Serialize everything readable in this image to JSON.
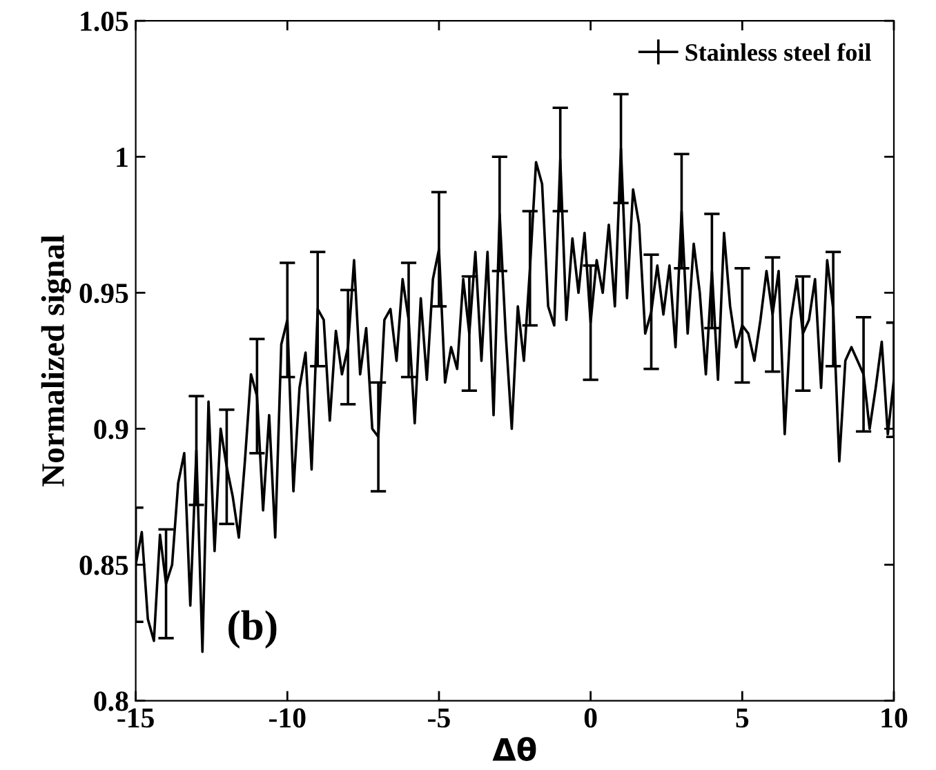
{
  "chart_data": {
    "type": "line",
    "xlabel": "Δθ",
    "ylabel": "Normalized signal",
    "annotations": [
      "(b)"
    ],
    "x": [
      -15.0,
      -14.8,
      -14.6,
      -14.4,
      -14.2,
      -14.0,
      -13.8,
      -13.6,
      -13.4,
      -13.2,
      -13.0,
      -12.8,
      -12.6,
      -12.4,
      -12.2,
      -12.0,
      -11.8,
      -11.6,
      -11.4,
      -11.2,
      -11.0,
      -10.8,
      -10.6,
      -10.4,
      -10.2,
      -10.0,
      -9.8,
      -9.6,
      -9.4,
      -9.2,
      -9.0,
      -8.8,
      -8.6,
      -8.4,
      -8.2,
      -8.0,
      -7.8,
      -7.6,
      -7.4,
      -7.2,
      -7.0,
      -6.8,
      -6.6,
      -6.4,
      -6.2,
      -6.0,
      -5.8,
      -5.6,
      -5.4,
      -5.2,
      -5.0,
      -4.8,
      -4.6,
      -4.4,
      -4.2,
      -4.0,
      -3.8,
      -3.6,
      -3.4,
      -3.2,
      -3.0,
      -2.8,
      -2.6,
      -2.4,
      -2.2,
      -2.0,
      -1.8,
      -1.6,
      -1.4,
      -1.2,
      -1.0,
      -0.8,
      -0.6,
      -0.4,
      -0.2,
      0.0,
      0.2,
      0.4,
      0.6,
      0.8,
      1.0,
      1.2,
      1.4,
      1.6,
      1.8,
      2.0,
      2.2,
      2.4,
      2.6,
      2.8,
      3.0,
      3.2,
      3.4,
      3.6,
      3.8,
      4.0,
      4.2,
      4.4,
      4.6,
      4.8,
      5.0,
      5.2,
      5.4,
      5.6,
      5.8,
      6.0,
      6.2,
      6.4,
      6.6,
      6.8,
      7.0,
      7.2,
      7.4,
      7.6,
      7.8,
      8.0,
      8.2,
      8.4,
      8.6,
      8.8,
      9.0,
      9.2,
      9.4,
      9.6,
      9.8,
      10.0
    ],
    "series": [
      {
        "name": "Stainless steel foil",
        "color": "#000000",
        "values": [
          0.85,
          0.862,
          0.83,
          0.822,
          0.861,
          0.843,
          0.85,
          0.88,
          0.891,
          0.835,
          0.892,
          0.818,
          0.91,
          0.855,
          0.9,
          0.886,
          0.875,
          0.86,
          0.888,
          0.92,
          0.912,
          0.87,
          0.905,
          0.86,
          0.931,
          0.94,
          0.877,
          0.915,
          0.928,
          0.885,
          0.944,
          0.94,
          0.903,
          0.936,
          0.92,
          0.93,
          0.962,
          0.92,
          0.937,
          0.9,
          0.897,
          0.94,
          0.944,
          0.925,
          0.955,
          0.94,
          0.902,
          0.948,
          0.918,
          0.955,
          0.966,
          0.917,
          0.93,
          0.922,
          0.955,
          0.935,
          0.965,
          0.925,
          0.965,
          0.905,
          0.979,
          0.935,
          0.9,
          0.945,
          0.925,
          0.959,
          0.998,
          0.99,
          0.945,
          0.938,
          0.999,
          0.94,
          0.97,
          0.95,
          0.972,
          0.939,
          0.962,
          0.95,
          0.975,
          0.945,
          1.003,
          0.948,
          0.988,
          0.975,
          0.935,
          0.943,
          0.96,
          0.942,
          0.96,
          0.93,
          0.98,
          0.935,
          0.968,
          0.95,
          0.92,
          0.958,
          0.918,
          0.972,
          0.945,
          0.93,
          0.938,
          0.935,
          0.925,
          0.94,
          0.958,
          0.942,
          0.958,
          0.898,
          0.94,
          0.955,
          0.935,
          0.94,
          0.955,
          0.915,
          0.962,
          0.944,
          0.888,
          0.925,
          0.93,
          0.925,
          0.92,
          0.9,
          0.915,
          0.932,
          0.898,
          0.918
        ],
        "errors": [
          0.021,
          null,
          null,
          null,
          null,
          0.02,
          null,
          null,
          null,
          null,
          0.02,
          null,
          null,
          null,
          null,
          0.021,
          null,
          null,
          null,
          null,
          0.021,
          null,
          null,
          null,
          null,
          0.021,
          null,
          null,
          null,
          null,
          0.021,
          null,
          null,
          null,
          null,
          0.021,
          null,
          null,
          null,
          null,
          0.02,
          null,
          null,
          null,
          null,
          0.021,
          null,
          null,
          null,
          null,
          0.021,
          null,
          null,
          null,
          null,
          0.021,
          null,
          null,
          null,
          null,
          0.021,
          null,
          null,
          null,
          null,
          0.021,
          null,
          null,
          null,
          null,
          0.019,
          null,
          null,
          null,
          null,
          0.021,
          null,
          null,
          null,
          null,
          0.02,
          null,
          null,
          null,
          null,
          0.021,
          null,
          null,
          null,
          null,
          0.021,
          null,
          null,
          null,
          null,
          0.021,
          null,
          null,
          null,
          null,
          0.021,
          null,
          null,
          null,
          null,
          0.021,
          null,
          null,
          null,
          null,
          0.021,
          null,
          null,
          null,
          null,
          0.021,
          null,
          null,
          null,
          null,
          0.021,
          null,
          null,
          null,
          null,
          0.021
        ]
      }
    ],
    "xlim": [
      -15,
      10
    ],
    "xticks": [
      -15,
      -10,
      -5,
      0,
      5,
      10
    ],
    "ylim": [
      0.8,
      1.05
    ],
    "yticks": [
      0.8,
      0.85,
      0.9,
      0.95,
      1,
      1.05
    ],
    "grid": false,
    "legend": "top right",
    "marker": "none",
    "line_style": "solid"
  }
}
